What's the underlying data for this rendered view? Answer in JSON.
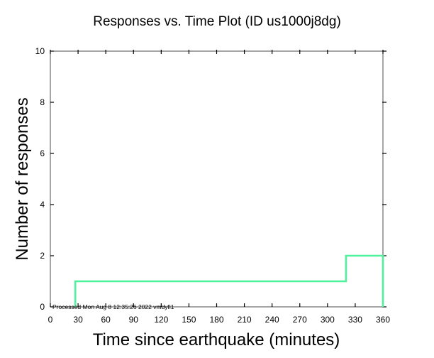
{
  "chart_data": {
    "type": "line",
    "step": true,
    "title": "Responses vs. Time Plot (ID us1000j8dg)",
    "xlabel": "Time since earthquake (minutes)",
    "ylabel": "Number of responses",
    "xlim": [
      0,
      360
    ],
    "ylim": [
      0,
      10
    ],
    "x_ticks": [
      0,
      30,
      60,
      90,
      120,
      150,
      180,
      210,
      240,
      270,
      300,
      330,
      360
    ],
    "y_ticks": [
      0,
      2,
      4,
      6,
      8,
      10
    ],
    "grid": false,
    "series": [
      {
        "color": "#4ef29c",
        "points": [
          [
            27,
            0
          ],
          [
            27,
            1
          ],
          [
            320,
            1
          ],
          [
            320,
            2
          ],
          [
            360,
            2
          ],
          [
            360,
            0
          ]
        ]
      }
    ],
    "annotation": "Processed Mon Aug  8 12:35:26 2022 vmdyfi1"
  }
}
